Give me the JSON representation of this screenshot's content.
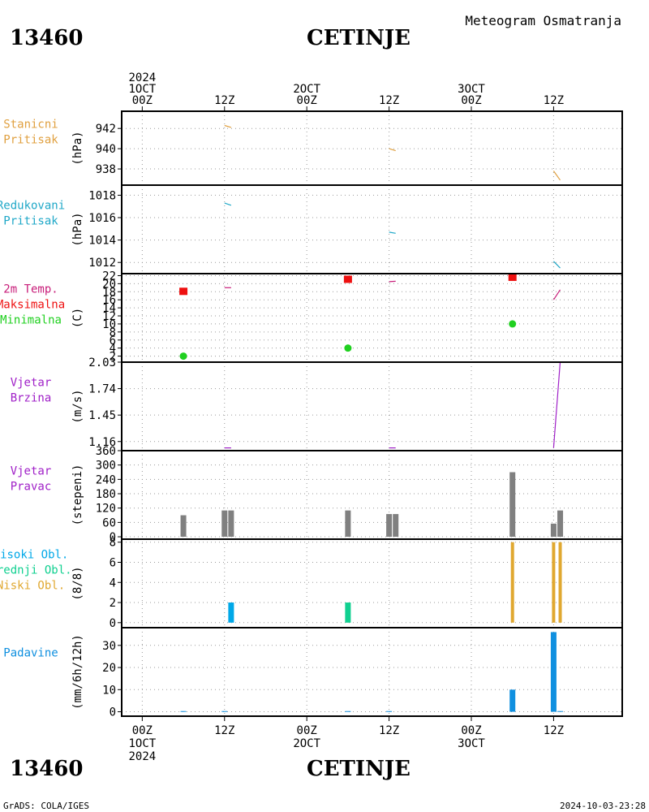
{
  "header": {
    "station_id": "13460",
    "station_name": "CETINJE",
    "subtitle": "Meteogram Osmatranja"
  },
  "footer": {
    "station_id": "13460",
    "station_name": "CETINJE",
    "credit": "GrADS: COLA/IGES",
    "timestamp": "2024-10-03-23:28"
  },
  "colors": {
    "pressure": "#e0a040",
    "reduced": "#20a8c8",
    "temp": "#c81e7a",
    "tmax": "#ee1010",
    "tmin": "#20d020",
    "wind": "#a020c8",
    "dir": "#808080",
    "high_cloud": "#00a8e8",
    "mid_cloud": "#10d090",
    "low_cloud": "#e0a830",
    "precip": "#1090e0"
  },
  "time_axis": {
    "top_labels": [
      {
        "x": 0,
        "lines": [
          "2024",
          "1OCT",
          "00Z"
        ]
      },
      {
        "x": 0.5,
        "lines": [
          "12Z"
        ]
      },
      {
        "x": 1,
        "lines": [
          "2OCT",
          "00Z"
        ]
      },
      {
        "x": 1.5,
        "lines": [
          "12Z"
        ]
      },
      {
        "x": 2,
        "lines": [
          "3OCT",
          "00Z"
        ]
      },
      {
        "x": 2.5,
        "lines": [
          "12Z"
        ]
      }
    ],
    "bottom_labels": [
      {
        "x": 0,
        "lines": [
          "00Z",
          "1OCT",
          "2024"
        ]
      },
      {
        "x": 0.5,
        "lines": [
          "12Z"
        ]
      },
      {
        "x": 1,
        "lines": [
          "00Z",
          "2OCT"
        ]
      },
      {
        "x": 1.5,
        "lines": [
          "12Z"
        ]
      },
      {
        "x": 2,
        "lines": [
          "00Z",
          "3OCT"
        ]
      },
      {
        "x": 2.5,
        "lines": [
          "12Z"
        ]
      }
    ],
    "domain": [
      -0.125,
      2.917
    ]
  },
  "chart_data": [
    {
      "type": "line",
      "title_lines": [
        "Stanicni",
        "Pritisak"
      ],
      "ylabel": "(hPa)",
      "ylim": [
        936.4,
        943.7
      ],
      "yticks": [
        938,
        940,
        942
      ],
      "series": [
        {
          "color": "pressure",
          "segments": [
            [
              [
                0.5,
                942.3
              ],
              [
                0.54,
                942.1
              ]
            ],
            [
              [
                1.5,
                940.0
              ],
              [
                1.54,
                939.8
              ]
            ],
            [
              [
                2.5,
                937.8
              ],
              [
                2.54,
                936.9
              ]
            ]
          ]
        }
      ]
    },
    {
      "type": "line",
      "title_lines": [
        "Redukovani",
        "Pritisak"
      ],
      "ylabel": "(hPa)",
      "ylim": [
        1011.0,
        1018.9
      ],
      "yticks": [
        1012,
        1014,
        1016,
        1018
      ],
      "series": [
        {
          "color": "reduced",
          "segments": [
            [
              [
                0.5,
                1017.3
              ],
              [
                0.54,
                1017.1
              ]
            ],
            [
              [
                1.5,
                1014.7
              ],
              [
                1.54,
                1014.6
              ]
            ],
            [
              [
                2.5,
                1012.1
              ],
              [
                2.54,
                1011.5
              ]
            ]
          ]
        }
      ]
    },
    {
      "type": "line",
      "title_lines": [
        "2m Temp.",
        "Maksimalna",
        "Minimalna"
      ],
      "title_colors": [
        "temp",
        "tmax",
        "tmin"
      ],
      "ylabel": "(C)",
      "ylim": [
        0.5,
        22.5
      ],
      "yticks": [
        2,
        4,
        6,
        8,
        10,
        12,
        14,
        16,
        18,
        20,
        22
      ],
      "series": [
        {
          "color": "temp",
          "segments": [
            [
              [
                0.5,
                19.0
              ],
              [
                0.54,
                19.0
              ]
            ],
            [
              [
                1.5,
                20.5
              ],
              [
                1.54,
                20.6
              ]
            ],
            [
              [
                2.5,
                16.0
              ],
              [
                2.54,
                18.5
              ]
            ]
          ]
        }
      ],
      "max_points": {
        "color": "tmax",
        "x": [
          0.25,
          1.25,
          2.25
        ],
        "y": [
          18.0,
          21.0,
          21.5
        ]
      },
      "min_points": {
        "color": "tmin",
        "x": [
          0.25,
          1.25,
          2.25
        ],
        "y": [
          2.0,
          4.0,
          10.0
        ]
      }
    },
    {
      "type": "line",
      "title_lines": [
        "Vjetar",
        "Brzina"
      ],
      "ylabel": "(m/s)",
      "ylim": [
        1.06,
        2.03
      ],
      "yticks": [
        1.16,
        1.45,
        1.74,
        2.03
      ],
      "tick_labels": [
        "1.16",
        "1.45",
        "1.74",
        "2.03"
      ],
      "series": [
        {
          "color": "wind",
          "segments": [
            [
              [
                0.5,
                1.09
              ],
              [
                0.54,
                1.09
              ]
            ],
            [
              [
                1.5,
                1.09
              ],
              [
                1.54,
                1.09
              ]
            ],
            [
              [
                2.5,
                1.09
              ],
              [
                2.54,
                2.03
              ]
            ]
          ]
        }
      ]
    },
    {
      "type": "bar",
      "title_lines": [
        "Vjetar",
        "Pravac"
      ],
      "ylabel": "(stepeni)",
      "ylim": [
        -10,
        360
      ],
      "yticks": [
        0,
        60,
        120,
        180,
        240,
        300,
        360
      ],
      "bar_color": "dir",
      "bars": [
        {
          "x": 0.25,
          "v": 90
        },
        {
          "x": 0.5,
          "v": 110
        },
        {
          "x": 0.54,
          "v": 110
        },
        {
          "x": 1.25,
          "v": 110
        },
        {
          "x": 1.5,
          "v": 95
        },
        {
          "x": 1.54,
          "v": 95
        },
        {
          "x": 2.25,
          "v": 270
        },
        {
          "x": 2.5,
          "v": 55
        },
        {
          "x": 2.54,
          "v": 110
        }
      ]
    },
    {
      "type": "bar",
      "title_lines": [
        "Visoki Obl.",
        "Srednji Obl.",
        "Niski Obl."
      ],
      "title_colors": [
        "high_cloud",
        "mid_cloud",
        "low_cloud"
      ],
      "ylabel": "(8/8)",
      "ylim": [
        -0.5,
        8.3
      ],
      "yticks": [
        0,
        2,
        4,
        6,
        8
      ],
      "series": [
        {
          "name": "Visoki Obl.",
          "color": "high_cloud",
          "bars": [
            {
              "x": 0.54,
              "v": 2
            }
          ]
        },
        {
          "name": "Srednji Obl.",
          "color": "mid_cloud",
          "bars": [
            {
              "x": 1.25,
              "v": 2
            }
          ]
        },
        {
          "name": "Niski Obl.",
          "color": "low_cloud",
          "bars": [
            {
              "x": 2.25,
              "v": 8
            },
            {
              "x": 2.5,
              "v": 8
            },
            {
              "x": 2.54,
              "v": 8
            }
          ]
        }
      ]
    },
    {
      "type": "bar",
      "title_lines": [
        "Padavine"
      ],
      "title_colors": [
        "precip"
      ],
      "ylabel": "(mm/6h/12h)",
      "ylim": [
        -2,
        38
      ],
      "yticks": [
        0,
        10,
        20,
        30
      ],
      "bar_color": "precip",
      "bars": [
        {
          "x": 0.25,
          "v": 0.3
        },
        {
          "x": 0.5,
          "v": 0.3
        },
        {
          "x": 1.25,
          "v": 0.3
        },
        {
          "x": 1.5,
          "v": 0.3
        },
        {
          "x": 2.25,
          "v": 10
        },
        {
          "x": 2.5,
          "v": 36
        },
        {
          "x": 2.54,
          "v": 0.3
        }
      ]
    }
  ]
}
